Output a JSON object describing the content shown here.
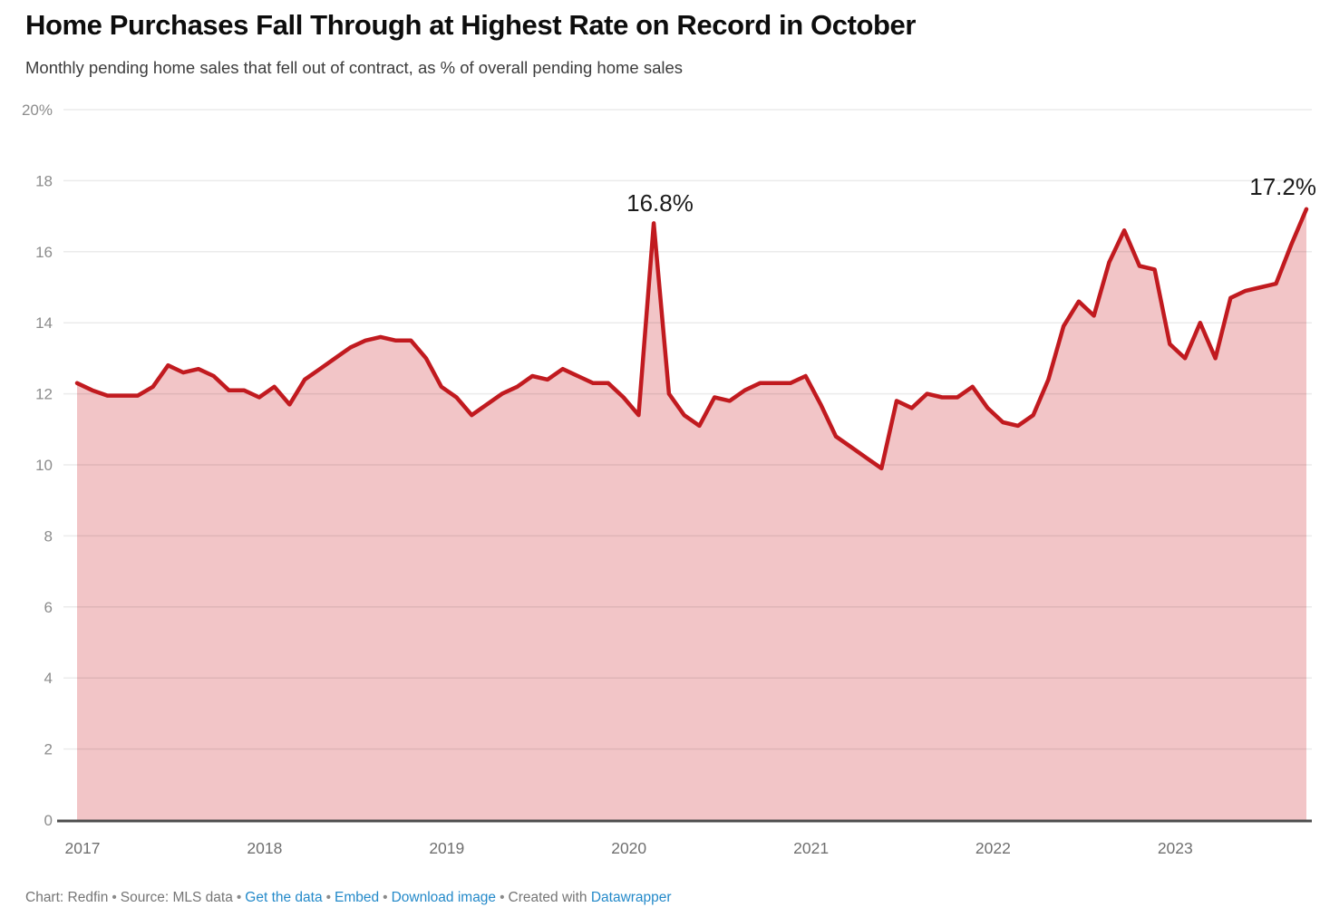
{
  "header": {
    "title": "Home Purchases Fall Through at Highest Rate on Record in October",
    "subtitle": "Monthly pending home sales that fell out of contract, as % of overall pending home sales"
  },
  "chart_data": {
    "type": "area",
    "series_name": "Pending home sales that fell out of contract (% of overall pending home sales)",
    "frequency": "monthly",
    "start": "Jan 2017",
    "end": "Oct 2023",
    "values": [
      12.3,
      12.1,
      11.95,
      11.95,
      11.95,
      12.2,
      12.8,
      12.6,
      12.7,
      12.5,
      12.1,
      12.1,
      11.9,
      12.2,
      11.7,
      12.4,
      12.7,
      13.0,
      13.3,
      13.5,
      13.6,
      13.5,
      13.5,
      13.0,
      12.2,
      11.9,
      11.4,
      11.7,
      12.0,
      12.2,
      12.5,
      12.4,
      12.7,
      12.5,
      12.3,
      12.3,
      11.9,
      11.4,
      16.8,
      12.0,
      11.4,
      11.1,
      11.9,
      11.8,
      12.1,
      12.3,
      12.3,
      12.3,
      12.5,
      11.7,
      10.8,
      10.5,
      10.2,
      9.9,
      11.8,
      11.6,
      12.0,
      11.9,
      11.9,
      12.2,
      11.6,
      11.2,
      11.1,
      11.4,
      12.4,
      13.9,
      14.6,
      14.2,
      15.7,
      16.6,
      15.6,
      15.5,
      13.4,
      13.0,
      14.0,
      13.0,
      14.7,
      14.9,
      15.0,
      15.1,
      16.2,
      17.2
    ],
    "categories": [
      "2017",
      "2018",
      "2019",
      "2020",
      "2021",
      "2022",
      "2023"
    ],
    "yticks": [
      "0",
      "2",
      "4",
      "6",
      "8",
      "10",
      "12",
      "14",
      "16",
      "18",
      "20%"
    ],
    "ylim": [
      0,
      20
    ],
    "grid": true,
    "legend_position": "none",
    "annotations": [
      {
        "label": "16.8%",
        "point": "Mar 2020",
        "value": 16.8
      },
      {
        "label": "17.2%",
        "point": "Oct 2023",
        "value": 17.2
      }
    ],
    "colors": {
      "line": "#c11a1f",
      "fill": "#f2c5c7",
      "grid": "rgba(0,0,0,0.08)",
      "axis": "#4d4d4d",
      "ytick_text": "#8c8c8c",
      "xtick_text": "#6f6f6f"
    }
  },
  "footer": {
    "segments": [
      {
        "text": "Chart: Redfin",
        "link": false,
        "bullet_after": true
      },
      {
        "text": "Source: MLS data",
        "link": false,
        "bullet_after": true
      },
      {
        "text": "Get the data",
        "link": true,
        "bullet_after": true
      },
      {
        "text": "Embed",
        "link": true,
        "bullet_after": true
      },
      {
        "text": "Download image",
        "link": true,
        "bullet_after": true
      },
      {
        "text": "Created with",
        "link": false,
        "bullet_after": false
      },
      {
        "text": "Datawrapper",
        "link": true,
        "bullet_after": false
      }
    ]
  }
}
